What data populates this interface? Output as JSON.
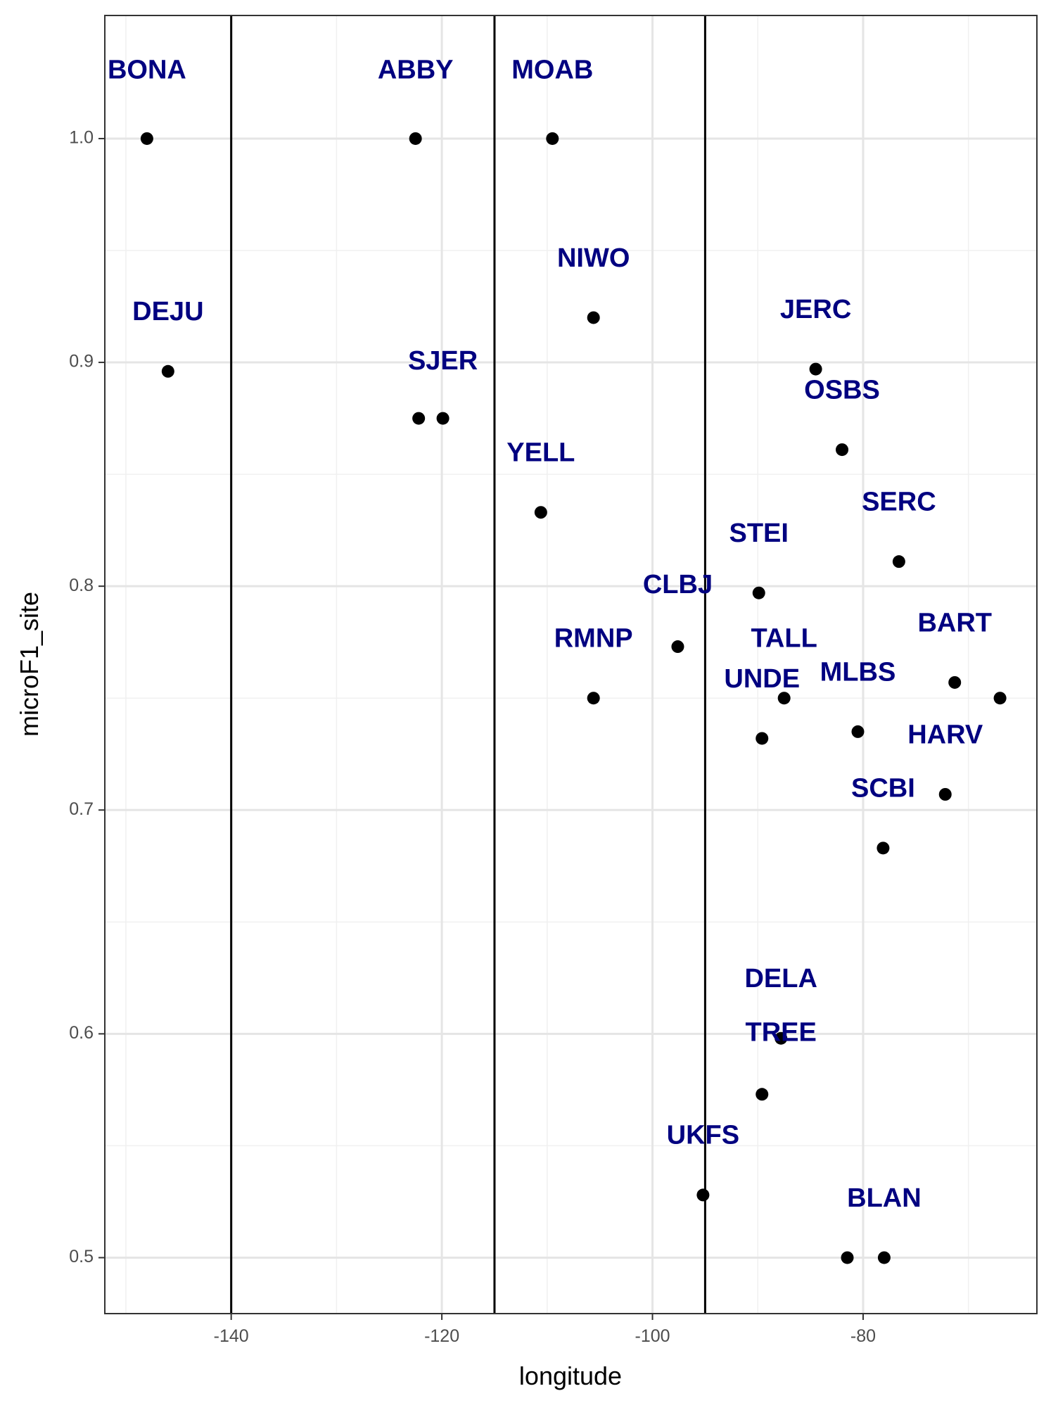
{
  "chart_data": {
    "type": "scatter",
    "xlabel": "longitude",
    "ylabel": "microF1_site",
    "xlim": [
      -152,
      -63.5
    ],
    "ylim": [
      0.475,
      1.055
    ],
    "x_ticks": [
      -140,
      -120,
      -100,
      -80
    ],
    "x_tick_labels": [
      "-140",
      "-120",
      "-100",
      "-80"
    ],
    "y_ticks": [
      0.5,
      0.6,
      0.7,
      0.8,
      0.9,
      1.0
    ],
    "y_tick_labels": [
      "0.5",
      "0.6",
      "0.7",
      "0.8",
      "0.9",
      "1.0"
    ],
    "x_minor": [
      -150,
      -130,
      -110,
      -90,
      -70
    ],
    "y_minor": [
      0.55,
      0.65,
      0.75,
      0.85,
      0.95
    ],
    "grid": true,
    "vlines": [
      -140,
      -115,
      -95
    ],
    "point_color": "#000000",
    "label_color": "#000080",
    "points": [
      {
        "x": -148.0,
        "y": 1.0
      },
      {
        "x": -146.0,
        "y": 0.896
      },
      {
        "x": -122.5,
        "y": 1.0
      },
      {
        "x": -122.2,
        "y": 0.875
      },
      {
        "x": -119.9,
        "y": 0.875
      },
      {
        "x": -109.5,
        "y": 1.0
      },
      {
        "x": -105.6,
        "y": 0.92
      },
      {
        "x": -110.6,
        "y": 0.833
      },
      {
        "x": -105.6,
        "y": 0.75
      },
      {
        "x": -97.6,
        "y": 0.773
      },
      {
        "x": -95.2,
        "y": 0.528
      },
      {
        "x": -89.9,
        "y": 0.797
      },
      {
        "x": -89.6,
        "y": 0.732
      },
      {
        "x": -87.5,
        "y": 0.75
      },
      {
        "x": -87.8,
        "y": 0.598
      },
      {
        "x": -89.6,
        "y": 0.573
      },
      {
        "x": -84.5,
        "y": 0.897
      },
      {
        "x": -82.0,
        "y": 0.861
      },
      {
        "x": -76.6,
        "y": 0.811
      },
      {
        "x": -80.5,
        "y": 0.735
      },
      {
        "x": -78.1,
        "y": 0.683
      },
      {
        "x": -81.5,
        "y": 0.5
      },
      {
        "x": -78.0,
        "y": 0.5
      },
      {
        "x": -71.3,
        "y": 0.757
      },
      {
        "x": -72.2,
        "y": 0.707
      },
      {
        "x": -67.0,
        "y": 0.75
      }
    ],
    "labels": [
      {
        "text": "BONA",
        "x": -148.0,
        "y": 1.03
      },
      {
        "text": "DEJU",
        "x": -146.0,
        "y": 0.922
      },
      {
        "text": "ABBY",
        "x": -122.5,
        "y": 1.03
      },
      {
        "text": "SJER",
        "x": -119.9,
        "y": 0.9
      },
      {
        "text": "MOAB",
        "x": -109.5,
        "y": 1.03
      },
      {
        "text": "NIWO",
        "x": -105.6,
        "y": 0.946
      },
      {
        "text": "YELL",
        "x": -110.6,
        "y": 0.859
      },
      {
        "text": "RMNP",
        "x": -105.6,
        "y": 0.776
      },
      {
        "text": "CLBJ",
        "x": -97.6,
        "y": 0.8
      },
      {
        "text": "STEI",
        "x": -89.9,
        "y": 0.823
      },
      {
        "text": "TALL",
        "x": -87.5,
        "y": 0.776
      },
      {
        "text": "UNDE",
        "x": -89.6,
        "y": 0.758
      },
      {
        "text": "JERC",
        "x": -84.5,
        "y": 0.923
      },
      {
        "text": "OSBS",
        "x": -82.0,
        "y": 0.887
      },
      {
        "text": "SERC",
        "x": -76.6,
        "y": 0.837
      },
      {
        "text": "MLBS",
        "x": -80.5,
        "y": 0.761
      },
      {
        "text": "BART",
        "x": -71.3,
        "y": 0.783
      },
      {
        "text": "HARV",
        "x": -72.2,
        "y": 0.733
      },
      {
        "text": "SCBI",
        "x": -78.1,
        "y": 0.709
      },
      {
        "text": "DELA",
        "x": -87.8,
        "y": 0.624
      },
      {
        "text": "TREE",
        "x": -87.8,
        "y": 0.6
      },
      {
        "text": "UKFS",
        "x": -95.2,
        "y": 0.554
      },
      {
        "text": "BLAN",
        "x": -78.0,
        "y": 0.526
      }
    ]
  }
}
